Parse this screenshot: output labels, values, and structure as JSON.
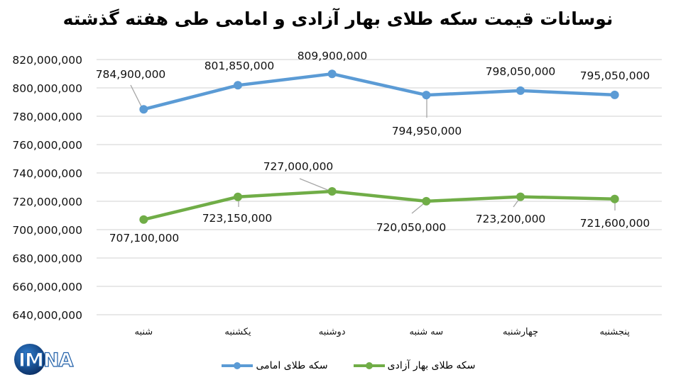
{
  "title": "نوسانات قیمت سکه طلای بهار آزادی و امامی طی هفته گذشته",
  "logo": {
    "text": "IMNA",
    "name": "imna-logo"
  },
  "colors": {
    "emami": "#5B9BD5",
    "bahar_azadi": "#70AD47",
    "gridline": "#D9D9D9",
    "leader_line": "#A6A6A6",
    "logo_blue": "#1F5FA8",
    "logo_dark": "#0B2E63"
  },
  "axis": {
    "y_ticks": [
      "820,000,000",
      "800,000,000",
      "780,000,000",
      "760,000,000",
      "740,000,000",
      "720,000,000",
      "700,000,000",
      "680,000,000",
      "660,000,000",
      "640,000,000"
    ],
    "x_ticks": [
      "شنبه",
      "یکشنبه",
      "دوشنبه",
      "سه شنبه",
      "چهارشنبه",
      "پنجشنبه"
    ]
  },
  "legend": {
    "items": [
      {
        "label": "سکه طلای امامی",
        "series": "emami"
      },
      {
        "label": "سکه طلای بهار آزادی",
        "series": "bahar_azadi"
      }
    ]
  },
  "labels": {
    "emami": [
      "784,900,000",
      "801,850,000",
      "809,900,000",
      "794,950,000",
      "798,050,000",
      "795,050,000"
    ],
    "bahar_azadi": [
      "707,100,000",
      "723,150,000",
      "727,000,000",
      "720,050,000",
      "723,200,000",
      "721,600,000"
    ]
  },
  "chart_data": {
    "type": "line",
    "title": "نوسانات قیمت سکه طلای بهار آزادی و امامی طی هفته گذشته",
    "xlabel": "",
    "ylabel": "",
    "categories": [
      "شنبه",
      "یکشنبه",
      "دوشنبه",
      "سه شنبه",
      "چهارشنبه",
      "پنجشنبه"
    ],
    "series": [
      {
        "name": "سکه طلای امامی",
        "color": "#5B9BD5",
        "values": [
          784900000,
          801850000,
          809900000,
          794950000,
          798050000,
          795050000
        ]
      },
      {
        "name": "سکه طلای بهار آزادی",
        "color": "#70AD47",
        "values": [
          707100000,
          723150000,
          727000000,
          720050000,
          723200000,
          721600000
        ]
      }
    ],
    "ylim": [
      640000000,
      820000000
    ],
    "y_tick_step": 20000000,
    "grid": true,
    "data_labels": true,
    "legend_position": "bottom"
  }
}
